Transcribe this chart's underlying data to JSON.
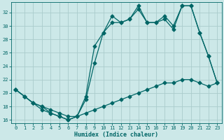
{
  "xlabel": "Humidex (Indice chaleur)",
  "bg_color": "#cce8e8",
  "grid_color": "#aacccc",
  "line_color": "#006666",
  "xlim": [
    -0.5,
    23.5
  ],
  "ylim": [
    15.5,
    33.5
  ],
  "xticks": [
    0,
    1,
    2,
    3,
    4,
    5,
    6,
    7,
    8,
    9,
    10,
    11,
    12,
    13,
    14,
    15,
    16,
    17,
    18,
    19,
    20,
    21,
    22,
    23
  ],
  "yticks": [
    16,
    18,
    20,
    22,
    24,
    26,
    28,
    30,
    32
  ],
  "line1_x": [
    0,
    1,
    2,
    3,
    4,
    5,
    6,
    7,
    8,
    9,
    10,
    11,
    12,
    13,
    14,
    15,
    16,
    17,
    18,
    19,
    20,
    21,
    22,
    23
  ],
  "line1_y": [
    20.5,
    19.5,
    18.5,
    17.5,
    17.0,
    16.5,
    16.0,
    16.5,
    19.5,
    27.0,
    29.0,
    31.5,
    30.5,
    31.0,
    33.0,
    30.5,
    30.5,
    31.0,
    29.5,
    33.0,
    33.0,
    29.0,
    25.5,
    21.5
  ],
  "line2_x": [
    0,
    1,
    2,
    3,
    4,
    5,
    6,
    7,
    8,
    9,
    10,
    11,
    12,
    13,
    14,
    15,
    16,
    17,
    18,
    19,
    20,
    21,
    22,
    23
  ],
  "line2_y": [
    20.5,
    19.5,
    18.5,
    18.0,
    17.0,
    16.5,
    16.0,
    16.5,
    19.0,
    24.5,
    29.0,
    30.5,
    30.5,
    31.0,
    32.5,
    30.5,
    30.5,
    31.5,
    30.0,
    33.0,
    33.0,
    29.0,
    25.5,
    21.5
  ],
  "line3_x": [
    0,
    1,
    2,
    3,
    4,
    5,
    6,
    7,
    8,
    9,
    10,
    11,
    12,
    13,
    14,
    15,
    16,
    17,
    18,
    19,
    20,
    21,
    22,
    23
  ],
  "line3_y": [
    20.5,
    19.5,
    18.5,
    18.0,
    17.5,
    17.0,
    16.5,
    16.5,
    17.0,
    17.5,
    18.0,
    18.5,
    19.0,
    19.5,
    20.0,
    20.5,
    21.0,
    21.5,
    21.5,
    22.0,
    22.0,
    21.5,
    21.0,
    21.5
  ]
}
